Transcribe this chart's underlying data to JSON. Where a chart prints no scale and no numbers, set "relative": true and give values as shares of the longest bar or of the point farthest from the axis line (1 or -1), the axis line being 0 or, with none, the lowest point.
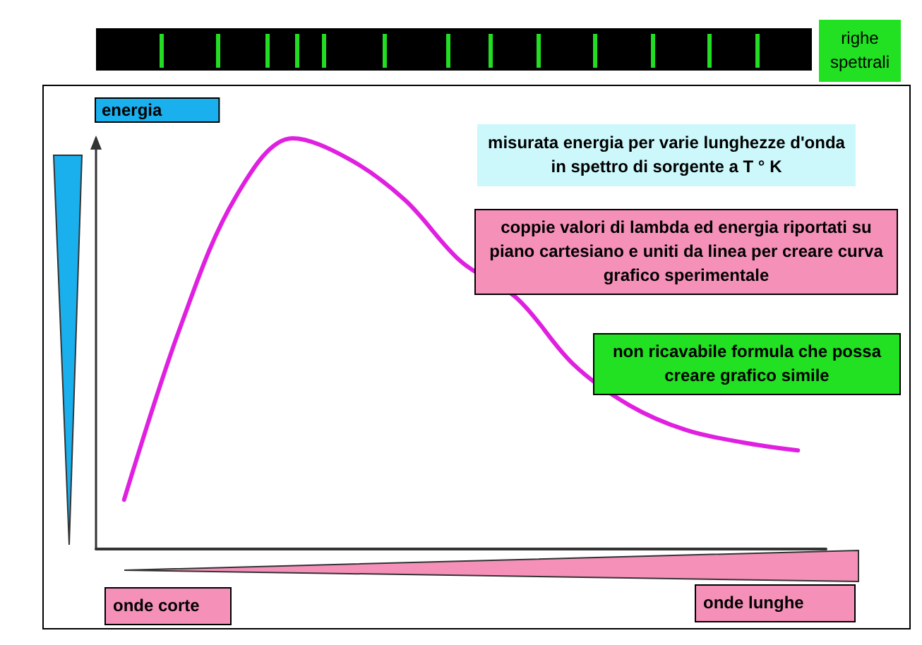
{
  "chart_data": {
    "type": "line",
    "ylabel": "energia",
    "categories": [
      null,
      null,
      null,
      null,
      null,
      null,
      null,
      null,
      null,
      null,
      null,
      null,
      null
    ],
    "series": [
      {
        "color": "#e020e0",
        "values": [
          0.12,
          0.54,
          0.86,
          1,
          0.95,
          0.85,
          0.7,
          0.61,
          0.45,
          0.35,
          0.29,
          0.26,
          0.24
        ]
      }
    ],
    "relative": true,
    "grid": false,
    "annotations": [
      "misurata energia per varie lunghezze d'onda in spettro di sorgente a T ° K",
      "coppie valori di lambda ed energia riportati su piano cartesiano e uniti da linea per creare curva grafico sperimentale",
      "non ricavabile formula che possa creare grafico simile",
      "onde corte",
      "onde lunghe",
      "righe spettrali"
    ]
  }
}
